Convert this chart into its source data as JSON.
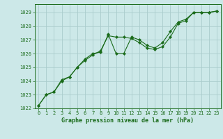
{
  "title": "Graphe pression niveau de la mer (hPa)",
  "background_color": "#cce8e8",
  "grid_color": "#aacccc",
  "line_color": "#1a6b1a",
  "x_ticks": [
    0,
    1,
    2,
    3,
    4,
    5,
    6,
    7,
    8,
    9,
    10,
    11,
    12,
    13,
    14,
    15,
    16,
    17,
    18,
    19,
    20,
    21,
    22,
    23
  ],
  "ylim": [
    1022,
    1029.6
  ],
  "yticks": [
    1022,
    1023,
    1024,
    1025,
    1026,
    1027,
    1028,
    1029
  ],
  "series1_y": [
    1022.2,
    1023.0,
    1023.2,
    1024.1,
    1024.3,
    1025.0,
    1025.5,
    1025.9,
    1026.2,
    1027.3,
    1027.2,
    1027.2,
    1027.1,
    1026.8,
    1026.4,
    1026.3,
    1026.5,
    1027.2,
    1028.2,
    1028.4,
    1029.0,
    1029.0,
    1029.0,
    1029.1
  ],
  "series2_y": [
    1022.2,
    1023.0,
    1023.2,
    1024.0,
    1024.3,
    1025.0,
    1025.6,
    1026.0,
    1026.1,
    1027.4,
    1026.0,
    1026.0,
    1027.2,
    1027.0,
    1026.6,
    1026.4,
    1026.8,
    1027.6,
    1028.3,
    1028.5,
    1029.0,
    1029.0,
    1029.0,
    1029.1
  ],
  "title_fontsize": 6,
  "tick_fontsize": 5
}
